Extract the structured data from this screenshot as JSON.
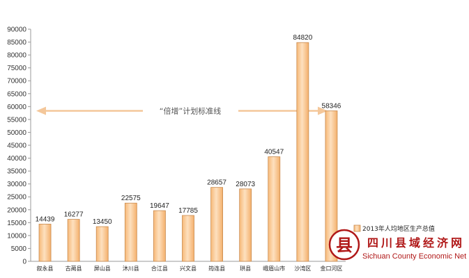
{
  "chart_data": {
    "type": "bar",
    "categories": [
      "叙永县",
      "古蔺县",
      "屏山县",
      "沐川县",
      "合江县",
      "兴文县",
      "筠连县",
      "珙县",
      "峨眉山市",
      "沙湾区",
      "金口河区"
    ],
    "series": [
      {
        "name": "2013年人均地区生产总值",
        "values": [
          14439,
          16277,
          13450,
          22575,
          19647,
          17785,
          28657,
          28073,
          40547,
          84820,
          58346
        ]
      }
    ],
    "ylim": [
      0,
      90000
    ],
    "yticks": [
      0,
      5000,
      10000,
      15000,
      20000,
      25000,
      30000,
      35000,
      40000,
      45000,
      50000,
      55000,
      60000,
      65000,
      70000,
      75000,
      80000,
      85000,
      90000
    ],
    "reference_line": {
      "label": "“倍增”计划标准线",
      "value": 58346
    },
    "legend_position": "bottom-right",
    "grid": false,
    "colors": {
      "bar_fill": "#fbcf9f",
      "bar_stroke": "#c88a4e",
      "arrow": "#f4c79a"
    }
  },
  "watermark": {
    "logo_char": "县",
    "cn": "四川县域经济网",
    "en": "Sichuan County Economic Net",
    "color": "#b01818"
  }
}
